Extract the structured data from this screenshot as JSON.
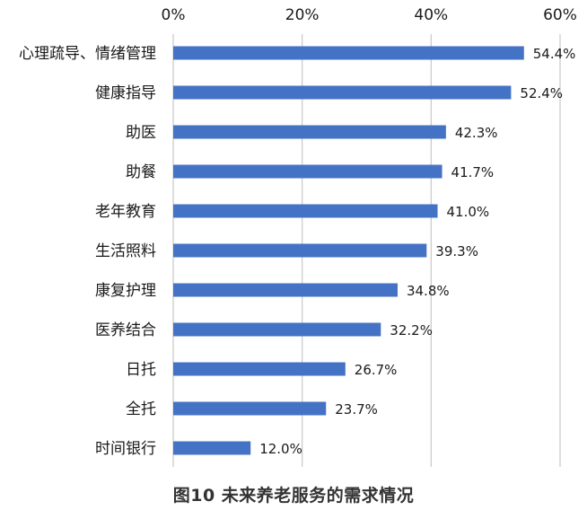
{
  "chart_data": {
    "type": "bar",
    "orientation": "horizontal",
    "title": "",
    "caption": "图10 未来养老服务的需求情况",
    "xlabel": "",
    "ylabel": "",
    "xlim": [
      0,
      60
    ],
    "x_ticks": [
      "0%",
      "20%",
      "40%",
      "60%"
    ],
    "x_tick_values": [
      0,
      20,
      40,
      60
    ],
    "x_axis_position": "top",
    "grid": true,
    "legend": "none",
    "bar_color": "#4472C4",
    "categories": [
      "心理疏导、情绪管理",
      "健康指导",
      "助医",
      "助餐",
      "老年教育",
      "生活照料",
      "康复护理",
      "医养结合",
      "日托",
      "全托",
      "时间银行"
    ],
    "values": [
      54.4,
      52.4,
      42.3,
      41.7,
      41.0,
      39.3,
      34.8,
      32.2,
      26.7,
      23.7,
      12.0
    ],
    "value_labels": [
      "54.4%",
      "52.4%",
      "42.3%",
      "41.7%",
      "41.0%",
      "39.3%",
      "34.8%",
      "32.2%",
      "26.7%",
      "23.7%",
      "12.0%"
    ]
  }
}
